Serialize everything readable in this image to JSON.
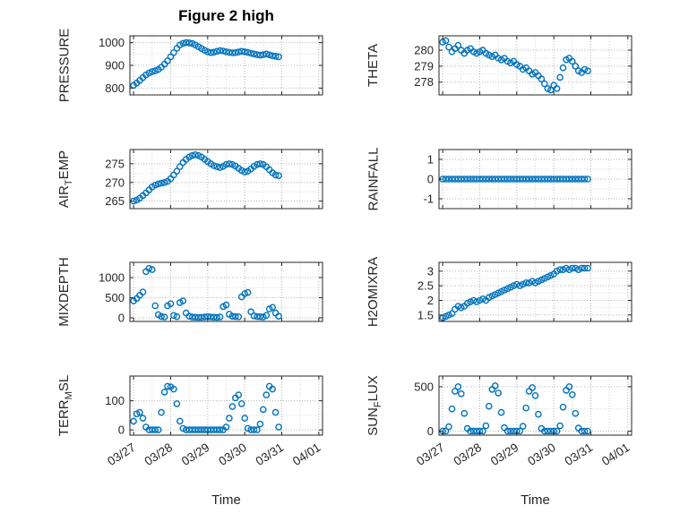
{
  "figure": {
    "title": "Figure 2 high",
    "xlabel": "Time",
    "accent_color": "#0072BD",
    "axis_color": "#262626",
    "grid_color": "#b5b5b5",
    "minor_grid_color": "#d9d9d9"
  },
  "x_axis": {
    "lim": [
      -0.1,
      5.1
    ],
    "ticks": [
      0,
      1,
      2,
      3,
      4,
      5
    ],
    "labels": [
      "03/27",
      "03/28",
      "03/29",
      "03/30",
      "03/31",
      "04/01"
    ],
    "t_start": 0,
    "t_step": 0.083333
  },
  "chart_data": [
    {
      "type": "scatter",
      "name": "pressure",
      "ylabel_pre": "PRESSURE",
      "ylabel_sub": "",
      "ylabel_post": "",
      "ylim": [
        770,
        1030
      ],
      "yticks": [
        800,
        900,
        1000
      ],
      "ytick_labels": [
        "800",
        "900",
        "1000"
      ],
      "y": [
        812,
        822,
        834,
        846,
        858,
        866,
        872,
        876,
        882,
        892,
        905,
        920,
        938,
        956,
        975,
        990,
        997,
        1000,
        999,
        996,
        990,
        982,
        974,
        966,
        960,
        956,
        958,
        962,
        965,
        963,
        960,
        957,
        955,
        956,
        959,
        962,
        960,
        957,
        953,
        950,
        947,
        945,
        947,
        950,
        946,
        942,
        940,
        938
      ]
    },
    {
      "type": "scatter",
      "name": "theta",
      "ylabel_pre": "THETA",
      "ylabel_sub": "",
      "ylabel_post": "",
      "ylim": [
        277.2,
        280.9
      ],
      "yticks": [
        278,
        279,
        280
      ],
      "ytick_labels": [
        "278",
        "279",
        "280"
      ],
      "y": [
        280.5,
        280.6,
        280.2,
        279.9,
        280.1,
        280.3,
        280.0,
        279.8,
        280.0,
        280.1,
        279.9,
        279.8,
        279.9,
        280.0,
        279.8,
        279.7,
        279.6,
        279.7,
        279.5,
        279.4,
        279.5,
        279.3,
        279.2,
        279.3,
        279.1,
        279.0,
        278.8,
        278.9,
        278.7,
        278.5,
        278.6,
        278.4,
        278.2,
        277.9,
        277.6,
        277.5,
        277.8,
        277.6,
        278.3,
        278.9,
        279.4,
        279.5,
        279.3,
        279.0,
        278.7,
        278.6,
        278.8,
        278.7
      ]
    },
    {
      "type": "scatter",
      "name": "air-temp",
      "ylabel_pre": "AIR",
      "ylabel_sub": "T",
      "ylabel_post": "EMP",
      "ylim": [
        263,
        278.8
      ],
      "yticks": [
        265,
        270,
        275
      ],
      "ytick_labels": [
        "265",
        "270",
        "275"
      ],
      "y": [
        265.0,
        265.3,
        265.8,
        266.5,
        267.2,
        268.0,
        268.8,
        269.3,
        269.6,
        269.8,
        270.0,
        270.3,
        271.0,
        272.0,
        273.0,
        274.2,
        275.3,
        276.2,
        276.8,
        277.2,
        277.4,
        277.2,
        276.8,
        276.2,
        275.6,
        275.0,
        274.5,
        274.2,
        274.0,
        274.3,
        274.8,
        275.0,
        274.8,
        274.4,
        273.8,
        273.2,
        272.8,
        273.0,
        273.6,
        274.3,
        274.8,
        275.0,
        274.8,
        274.2,
        273.4,
        272.6,
        272.0,
        271.8
      ]
    },
    {
      "type": "scatter",
      "name": "rainfall",
      "ylabel_pre": "RAINFALL",
      "ylabel_sub": "",
      "ylabel_post": "",
      "ylim": [
        -1.5,
        1.5
      ],
      "yticks": [
        -1,
        0,
        1
      ],
      "ytick_labels": [
        "-1",
        "0",
        "1"
      ],
      "y": [
        0,
        0,
        0,
        0,
        0,
        0,
        0,
        0,
        0,
        0,
        0,
        0,
        0,
        0,
        0,
        0,
        0,
        0,
        0,
        0,
        0,
        0,
        0,
        0,
        0,
        0,
        0,
        0,
        0,
        0,
        0,
        0,
        0,
        0,
        0,
        0,
        0,
        0,
        0,
        0,
        0,
        0,
        0,
        0,
        0,
        0,
        0,
        0
      ]
    },
    {
      "type": "scatter",
      "name": "mixdepth",
      "ylabel_pre": "MIXDEPTH",
      "ylabel_sub": "",
      "ylabel_post": "",
      "ylim": [
        -90,
        1380
      ],
      "yticks": [
        0,
        500,
        1000
      ],
      "ytick_labels": [
        "0",
        "500",
        "1000"
      ],
      "y": [
        420,
        480,
        560,
        640,
        1150,
        1230,
        1200,
        300,
        80,
        30,
        20,
        300,
        350,
        60,
        30,
        380,
        420,
        120,
        40,
        20,
        15,
        10,
        10,
        20,
        30,
        20,
        15,
        10,
        20,
        280,
        320,
        90,
        40,
        30,
        25,
        520,
        600,
        630,
        150,
        50,
        30,
        25,
        20,
        60,
        220,
        260,
        120,
        40
      ]
    },
    {
      "type": "scatter",
      "name": "h2omixra",
      "ylabel_pre": "H2OMIXRA",
      "ylabel_sub": "",
      "ylabel_post": "",
      "ylim": [
        1.28,
        3.3
      ],
      "yticks": [
        1.5,
        2,
        2.5,
        3
      ],
      "ytick_labels": [
        "1.5",
        "2",
        "2.5",
        "3"
      ],
      "y": [
        1.4,
        1.45,
        1.5,
        1.55,
        1.7,
        1.8,
        1.75,
        1.8,
        1.9,
        1.95,
        2.0,
        1.95,
        2.0,
        2.05,
        2.0,
        2.1,
        2.15,
        2.2,
        2.25,
        2.3,
        2.35,
        2.4,
        2.45,
        2.5,
        2.55,
        2.5,
        2.55,
        2.6,
        2.6,
        2.65,
        2.6,
        2.65,
        2.7,
        2.75,
        2.8,
        2.85,
        2.9,
        3.0,
        3.05,
        3.05,
        3.1,
        3.05,
        3.1,
        3.1,
        3.05,
        3.1,
        3.1,
        3.1
      ]
    },
    {
      "type": "scatter",
      "name": "terr-msl",
      "ylabel_pre": "TERR",
      "ylabel_sub": "M",
      "ylabel_post": "SL",
      "ylim": [
        -18,
        185
      ],
      "yticks": [
        0,
        100
      ],
      "ytick_labels": [
        "0",
        "100"
      ],
      "y": [
        30,
        55,
        60,
        40,
        10,
        0,
        0,
        0,
        0,
        60,
        130,
        150,
        148,
        140,
        90,
        30,
        5,
        0,
        0,
        0,
        0,
        0,
        0,
        0,
        0,
        0,
        0,
        0,
        0,
        0,
        10,
        40,
        80,
        110,
        120,
        90,
        40,
        5,
        0,
        0,
        0,
        20,
        70,
        120,
        150,
        140,
        60,
        10
      ]
    },
    {
      "type": "scatter",
      "name": "sun-flux",
      "ylabel_pre": "SUN",
      "ylabel_sub": "F",
      "ylabel_post": "LUX",
      "ylim": [
        -45,
        620
      ],
      "yticks": [
        0,
        500
      ],
      "ytick_labels": [
        "0",
        "500"
      ],
      "y": [
        0,
        0,
        50,
        250,
        450,
        500,
        420,
        200,
        30,
        0,
        0,
        0,
        0,
        0,
        60,
        280,
        470,
        510,
        430,
        210,
        40,
        0,
        0,
        0,
        0,
        0,
        55,
        260,
        450,
        490,
        400,
        190,
        30,
        0,
        0,
        0,
        0,
        0,
        60,
        270,
        460,
        500,
        410,
        200,
        35,
        0,
        0,
        0
      ]
    }
  ]
}
